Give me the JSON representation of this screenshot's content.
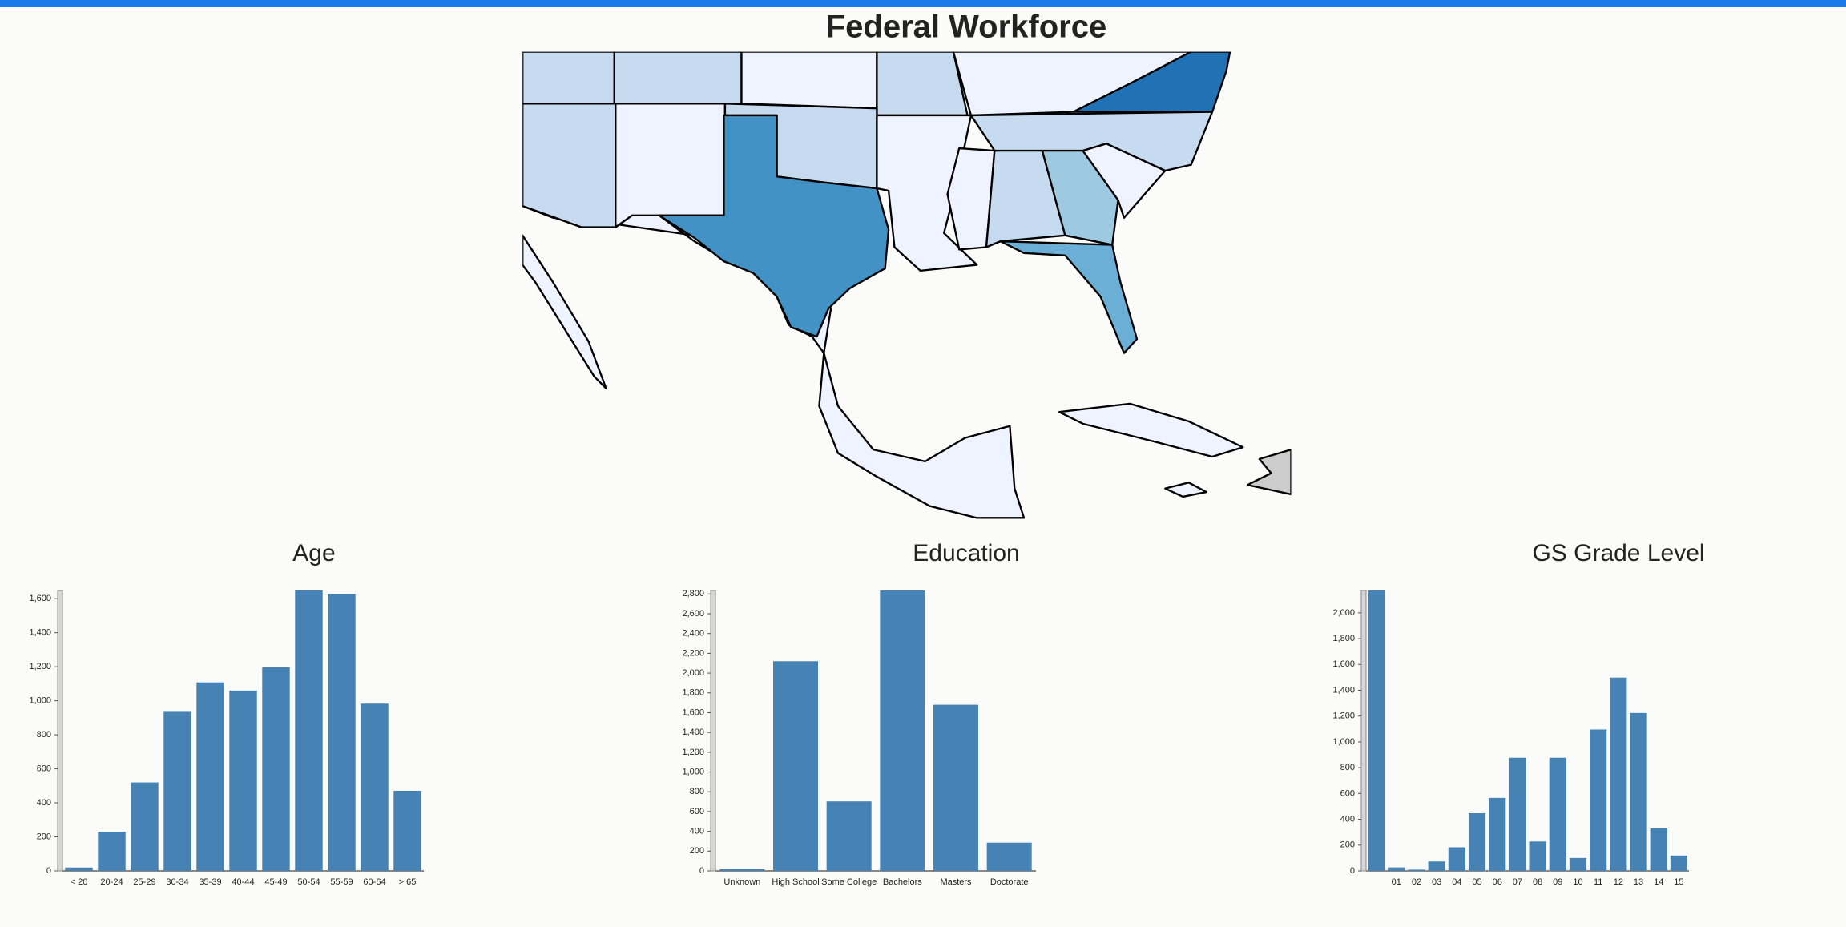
{
  "page": {
    "title": "Federal Workforce"
  },
  "chart_data": [
    {
      "type": "bar",
      "title": "Age",
      "color": "#4682b4",
      "categories": [
        "< 20",
        "20-24",
        "25-29",
        "30-34",
        "35-39",
        "40-44",
        "45-49",
        "50-54",
        "55-59",
        "60-64",
        "> 65"
      ],
      "values": [
        20,
        230,
        520,
        935,
        1108,
        1060,
        1198,
        1648,
        1627,
        983,
        471
      ],
      "ylim": [
        0,
        1648
      ],
      "yticks": [
        0,
        200,
        400,
        600,
        800,
        {
          "value": 1000,
          "label": "1,000"
        },
        {
          "value": 1200,
          "label": "1,200"
        },
        {
          "value": 1400,
          "label": "1,400"
        },
        {
          "value": 1600,
          "label": "1,600"
        }
      ]
    },
    {
      "type": "bar",
      "title": "Education",
      "color": "#4682b4",
      "categories": [
        "Unknown",
        "High School",
        "Some College",
        "Bachelors",
        "Masters",
        "Doctorate"
      ],
      "values": [
        20,
        2120,
        703,
        2835,
        1680,
        286
      ],
      "ylim": [
        0,
        2835
      ],
      "yticks": [
        0,
        200,
        400,
        600,
        800,
        {
          "value": 1000,
          "label": "1,000"
        },
        {
          "value": 1200,
          "label": "1,200"
        },
        {
          "value": 1400,
          "label": "1,400"
        },
        {
          "value": 1600,
          "label": "1,600"
        },
        {
          "value": 1800,
          "label": "1,800"
        },
        {
          "value": 2000,
          "label": "2,000"
        },
        {
          "value": 2200,
          "label": "2,200"
        },
        {
          "value": 2400,
          "label": "2,400"
        },
        {
          "value": 2600,
          "label": "2,600"
        },
        {
          "value": 2800,
          "label": "2,800"
        }
      ]
    },
    {
      "type": "bar",
      "title": "GS Grade Level",
      "color": "#4682b4",
      "categories": [
        null,
        "01",
        "02",
        "03",
        "04",
        "05",
        "06",
        "07",
        "08",
        "09",
        "10",
        "11",
        "12",
        "13",
        "14",
        "15"
      ],
      "values": [
        2173,
        27,
        10,
        73,
        183,
        447,
        566,
        877,
        228,
        877,
        100,
        1096,
        1498,
        1224,
        329,
        119
      ],
      "ylim": [
        0,
        2173
      ],
      "yticks": [
        0,
        200,
        400,
        600,
        800,
        {
          "value": 1000,
          "label": "1,000"
        },
        {
          "value": 1200,
          "label": "1,200"
        },
        {
          "value": 1400,
          "label": "1,400"
        },
        {
          "value": 1600,
          "label": "1,600"
        },
        {
          "value": 1800,
          "label": "1,800"
        },
        {
          "value": 2000,
          "label": "2,000"
        }
      ]
    }
  ]
}
